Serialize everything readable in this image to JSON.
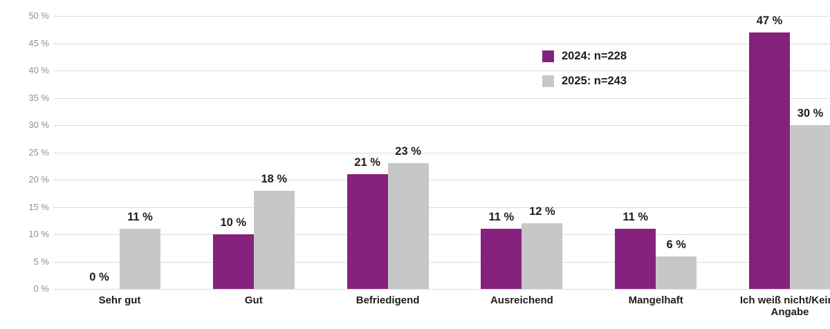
{
  "colors": {
    "series_2024": "#86217e",
    "series_2025": "#c8c7c7",
    "gridline": "#dbdbdb",
    "tick_label": "#8f8f8f",
    "text": "#1d1d1b",
    "background": "#ffffff"
  },
  "chart_data": {
    "type": "bar",
    "title": "",
    "xlabel": "",
    "ylabel": "",
    "categories": [
      "Sehr gut",
      "Gut",
      "Befriedigend",
      "Ausreichend",
      "Mangelhaft",
      "Ich weiß nicht/Keine\nAngabe"
    ],
    "series": [
      {
        "name": "2024: n=228",
        "color": "#86217e",
        "values": [
          0,
          10,
          21,
          11,
          11,
          47
        ],
        "value_labels": [
          "0 %",
          "10 %",
          "21 %",
          "11 %",
          "11 %",
          "47 %"
        ]
      },
      {
        "name": "2025: n=243",
        "color": "#c8c7c7",
        "values": [
          11,
          18,
          23,
          12,
          6,
          30
        ],
        "value_labels": [
          "11 %",
          "18 %",
          "23 %",
          "12 %",
          "6 %",
          "30 %"
        ]
      }
    ],
    "ylim": [
      0,
      50
    ],
    "ytick_step": 5,
    "yticks": [
      "0 %",
      "5 %",
      "10 %",
      "15 %",
      "20 %",
      "25 %",
      "30 %",
      "35 %",
      "40 %",
      "45 %",
      "50 %"
    ],
    "grid": "horizontal",
    "legend_position": "top-right"
  }
}
